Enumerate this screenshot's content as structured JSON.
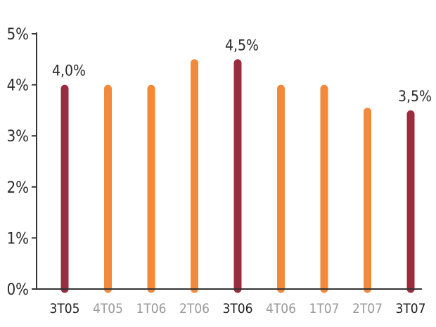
{
  "chart_data": {
    "type": "bar",
    "title": "",
    "xlabel": "",
    "ylabel": "",
    "categories": [
      "3T05",
      "4T05",
      "1T06",
      "2T06",
      "3T06",
      "4T06",
      "1T07",
      "2T07",
      "3T07"
    ],
    "values": [
      4.0,
      4.0,
      4.0,
      4.5,
      4.5,
      4.0,
      4.0,
      3.55,
      3.5
    ],
    "highlighted": [
      true,
      false,
      false,
      false,
      true,
      false,
      false,
      false,
      true
    ],
    "data_labels": [
      "4,0%",
      "",
      "",
      "",
      "4,5%",
      "",
      "",
      "",
      "3,5%"
    ],
    "yticks": [
      0,
      1,
      2,
      3,
      4,
      5
    ],
    "ytick_labels": [
      "0%",
      "1%",
      "2%",
      "3%",
      "4%",
      "5%"
    ],
    "ylim": [
      0,
      5
    ],
    "grid": false,
    "legend": "none",
    "colors": {
      "highlight_bar": "#9b2c3e",
      "regular_bar": "#f28a3c",
      "highlight_tick": "#222222",
      "regular_tick": "#9a9a9a",
      "axis": "#333333"
    }
  }
}
